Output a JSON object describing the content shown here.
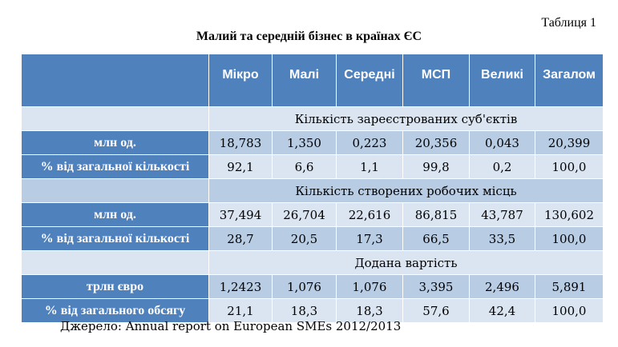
{
  "table_number": "Таблиця 1",
  "title": "Малий та середній бізнес в країнах ЄС",
  "columns": [
    "Мікро",
    "Малі",
    "Середні",
    "МСП",
    "Великі",
    "Загалом"
  ],
  "sections": [
    {
      "heading": "Кількість зареєстрованих суб'єктів",
      "rows": [
        {
          "label": "млн од.",
          "values": [
            "18,783",
            "1,350",
            "0,223",
            "20,356",
            "0,043",
            "20,399"
          ]
        },
        {
          "label": "% від загальної кількості",
          "values": [
            "92,1",
            "6,6",
            "1,1",
            "99,8",
            "0,2",
            "100,0"
          ]
        }
      ]
    },
    {
      "heading": "Кількість створених робочих місць",
      "rows": [
        {
          "label": "млн од.",
          "values": [
            "37,494",
            "26,704",
            "22,616",
            "86,815",
            "43,787",
            "130,602"
          ]
        },
        {
          "label": "% від загальної кількості",
          "values": [
            "28,7",
            "20,5",
            "17,3",
            "66,5",
            "33,5",
            "100,0"
          ]
        }
      ]
    },
    {
      "heading": "Додана вартість",
      "rows": [
        {
          "label": "трлн євро",
          "values": [
            "1,2423",
            "1,076",
            "1,076",
            "3,395",
            "2,496",
            "5,891"
          ]
        },
        {
          "label": "% від загального обсягу",
          "values": [
            "21,1",
            "18,3",
            "18,3",
            "57,6",
            "42,4",
            "100,0"
          ]
        }
      ]
    }
  ],
  "source": "Джерело: Annual report on European SMEs 2012/2013",
  "colors": {
    "header_blue": "#4f81bd",
    "row_light": "#dbe5f1",
    "row_dark": "#b8cce4"
  }
}
